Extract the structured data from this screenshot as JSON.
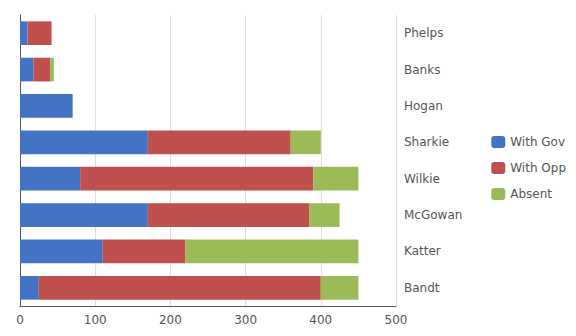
{
  "chart_data": {
    "type": "bar",
    "orientation": "horizontal",
    "stacked": true,
    "categories": [
      "Phelps",
      "Banks",
      "Hogan",
      "Sharkie",
      "Wilkie",
      "McGowan",
      "Katter",
      "Bandt"
    ],
    "series": [
      {
        "name": "With Gov",
        "color": "#4472C4",
        "values": [
          10,
          18,
          70,
          170,
          80,
          170,
          110,
          25
        ]
      },
      {
        "name": "With Opp",
        "color": "#C0504D",
        "values": [
          32,
          22,
          0,
          190,
          310,
          215,
          110,
          375
        ]
      },
      {
        "name": "Absent",
        "color": "#9BBB59",
        "values": [
          0,
          5,
          0,
          40,
          60,
          40,
          230,
          50
        ]
      }
    ],
    "xlim": [
      0,
      500
    ],
    "xticks": [
      0,
      100,
      200,
      300,
      400,
      500
    ],
    "grid": true,
    "legend": "right"
  }
}
